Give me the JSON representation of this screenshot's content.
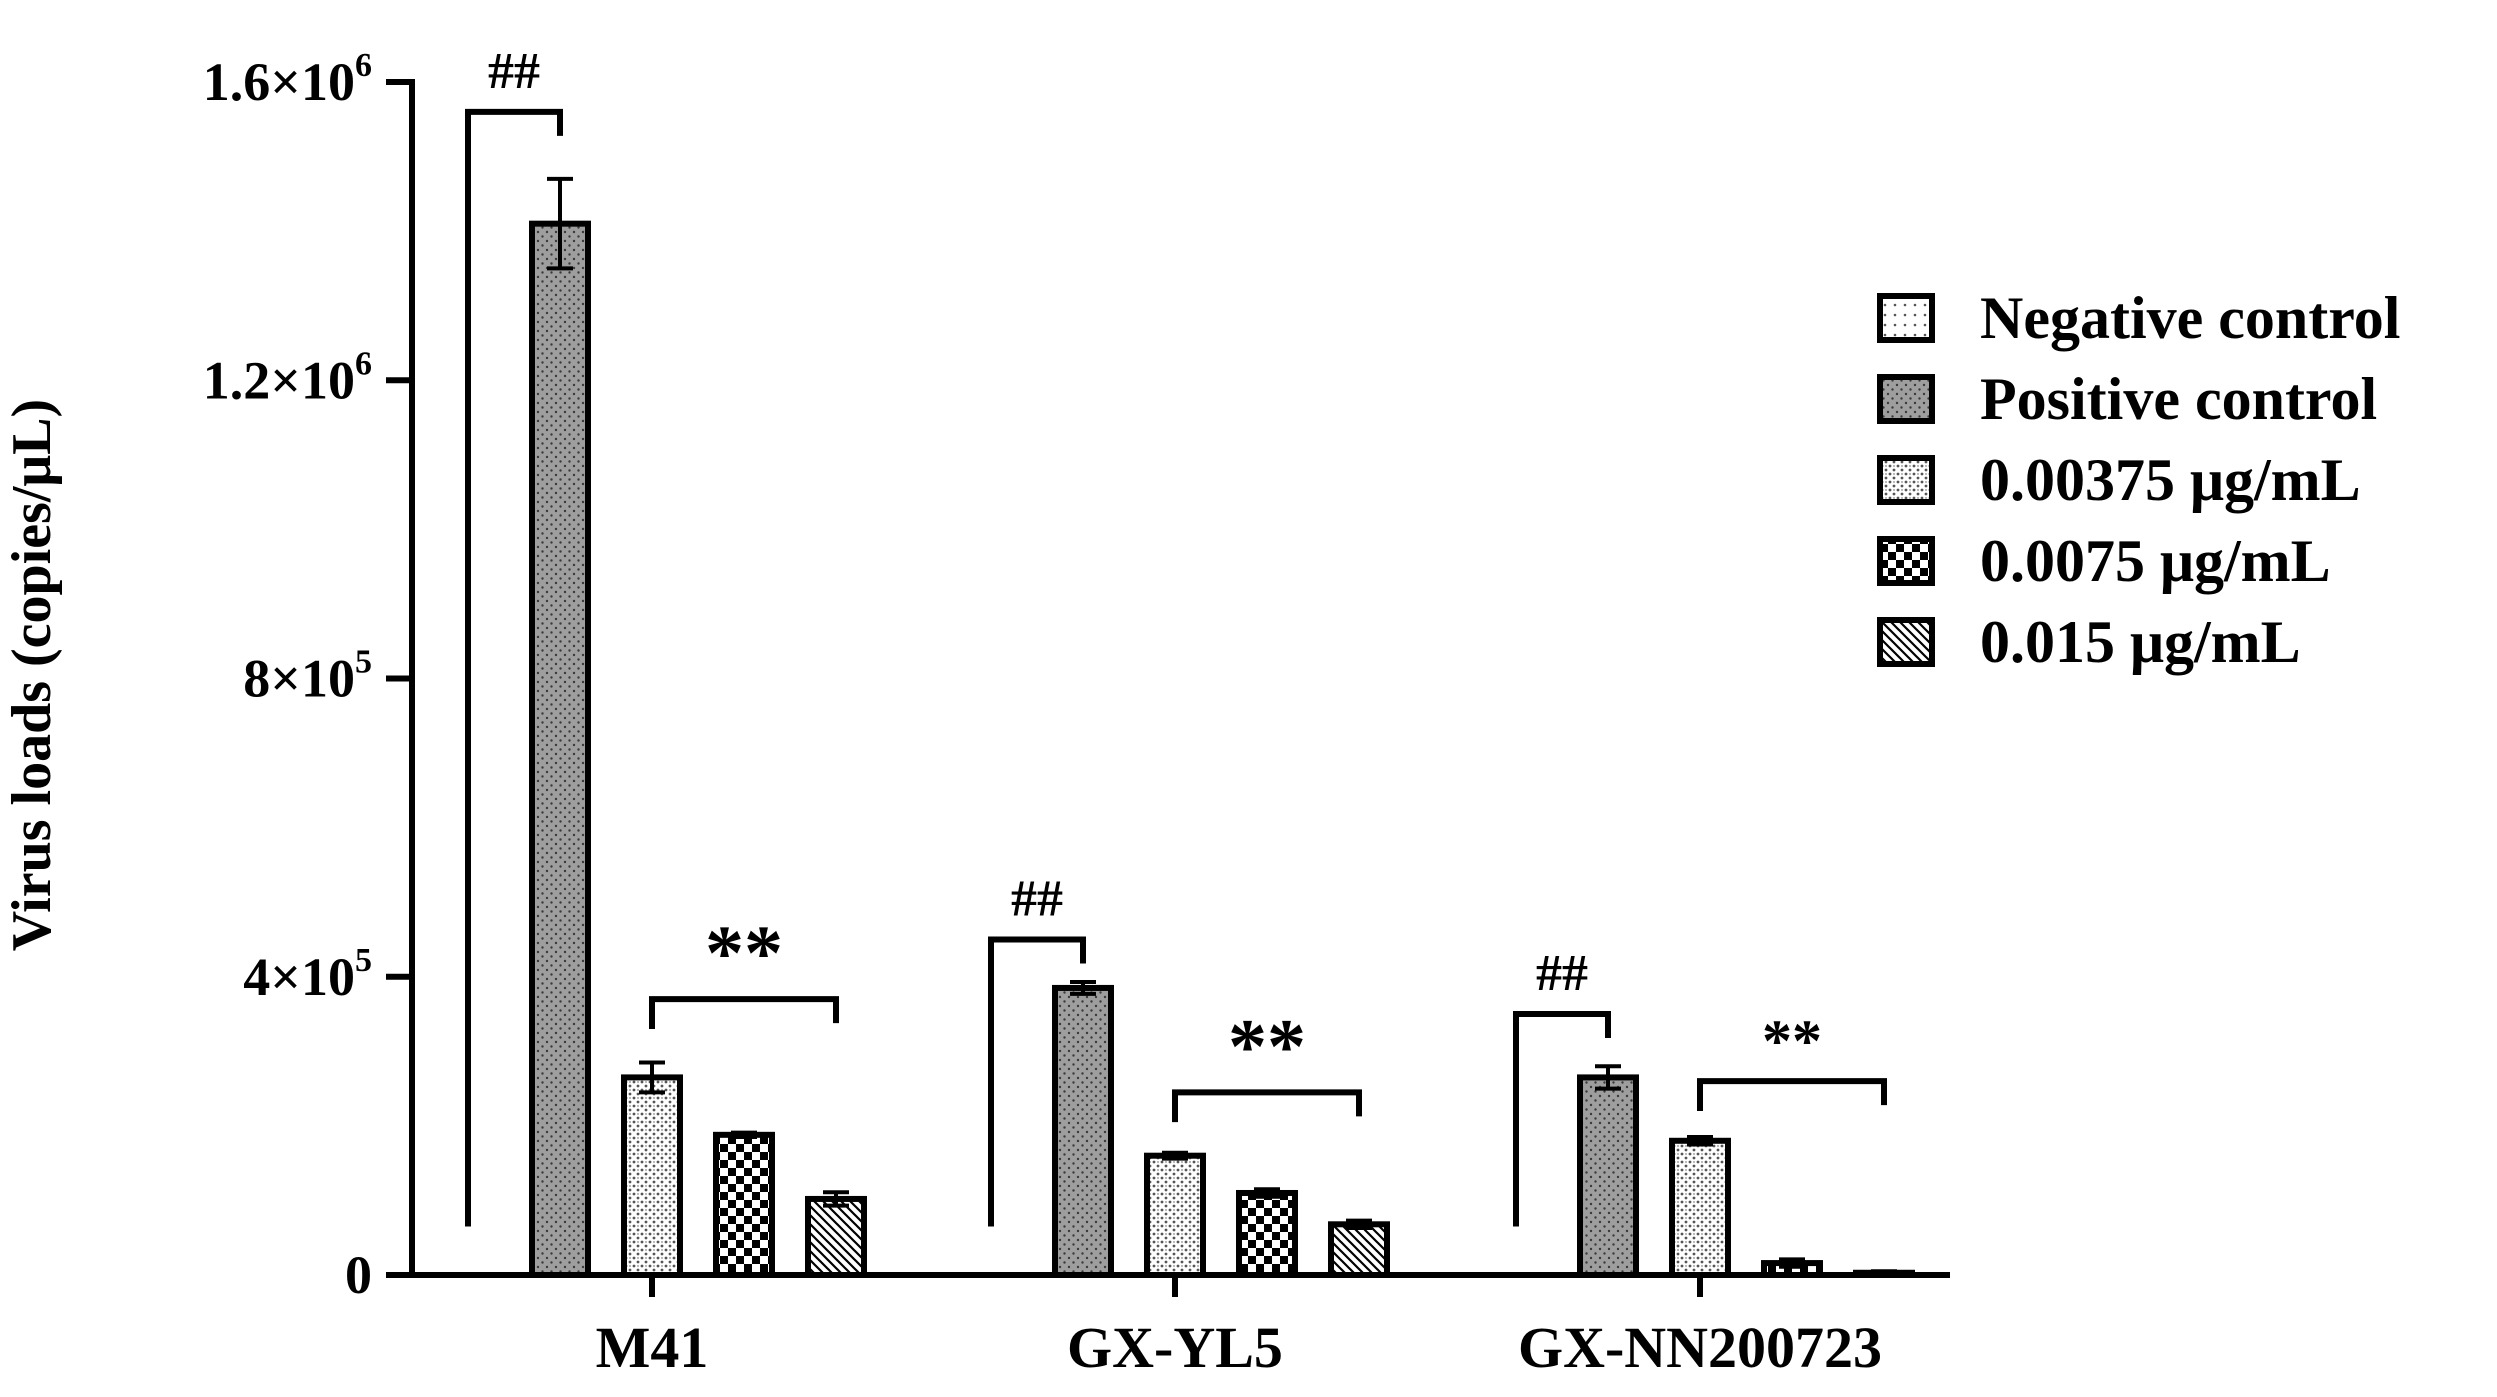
{
  "chart_data": {
    "type": "bar",
    "title": "",
    "xlabel": "",
    "ylabel": "Virus loads (copies/μL)",
    "ylim": [
      0,
      1600000
    ],
    "yticks": [
      {
        "value": 0,
        "base": "0",
        "exp": ""
      },
      {
        "value": 400000,
        "base": "4×10",
        "exp": "5"
      },
      {
        "value": 800000,
        "base": "8×10",
        "exp": "5"
      },
      {
        "value": 1200000,
        "base": "1.2×10",
        "exp": "6"
      },
      {
        "value": 1600000,
        "base": "1.6×10",
        "exp": "6"
      }
    ],
    "categories": [
      "M41",
      "GX-YL5",
      "GX-NN200723"
    ],
    "series": [
      {
        "name": "Negative control",
        "values": [
          0,
          0,
          0
        ],
        "errors": [
          0,
          0,
          0
        ],
        "pattern": "pat-dots-sparse",
        "fill": "#ffffff"
      },
      {
        "name": "Positive control",
        "values": [
          1410000,
          385000,
          265000
        ],
        "errors": [
          60000,
          8000,
          15000
        ],
        "pattern": "pat-dots-gray",
        "fill": "#9a9a9a"
      },
      {
        "name": "0.00375 μg/mL",
        "values": [
          265000,
          160000,
          180000
        ],
        "errors": [
          20000,
          4000,
          5000
        ],
        "pattern": "pat-dots-dense",
        "fill": "#ffffff"
      },
      {
        "name": "0.0075 μg/mL",
        "values": [
          188000,
          110000,
          16000
        ],
        "errors": [
          3000,
          5000,
          5000
        ],
        "pattern": "pat-checker",
        "fill": "#000000"
      },
      {
        "name": "0.015 μg/mL",
        "values": [
          102000,
          68000,
          3000
        ],
        "errors": [
          9000,
          5000,
          2000
        ],
        "pattern": "pat-hatch",
        "fill": "#ffffff"
      }
    ],
    "significance": [
      {
        "category": 0,
        "label": "##",
        "between": [
          0,
          1
        ],
        "bracket_y": 1560000,
        "left_bottom": 65000
      },
      {
        "category": 0,
        "label": "**",
        "between": [
          2,
          4
        ],
        "bracket_y": 370000,
        "left_bottom": 330000
      },
      {
        "category": 1,
        "label": "##",
        "between": [
          0,
          1
        ],
        "bracket_y": 450000,
        "left_bottom": 65000
      },
      {
        "category": 1,
        "label": "**",
        "between": [
          2,
          4
        ],
        "bracket_y": 245000,
        "left_bottom": 205000
      },
      {
        "category": 2,
        "label": "##",
        "between": [
          0,
          1
        ],
        "bracket_y": 350000,
        "left_bottom": 65000
      },
      {
        "category": 2,
        "label": "**",
        "between": [
          2,
          4
        ],
        "bracket_y": 260000,
        "left_bottom": 220000
      }
    ],
    "legend_position": "right",
    "grid": false
  }
}
